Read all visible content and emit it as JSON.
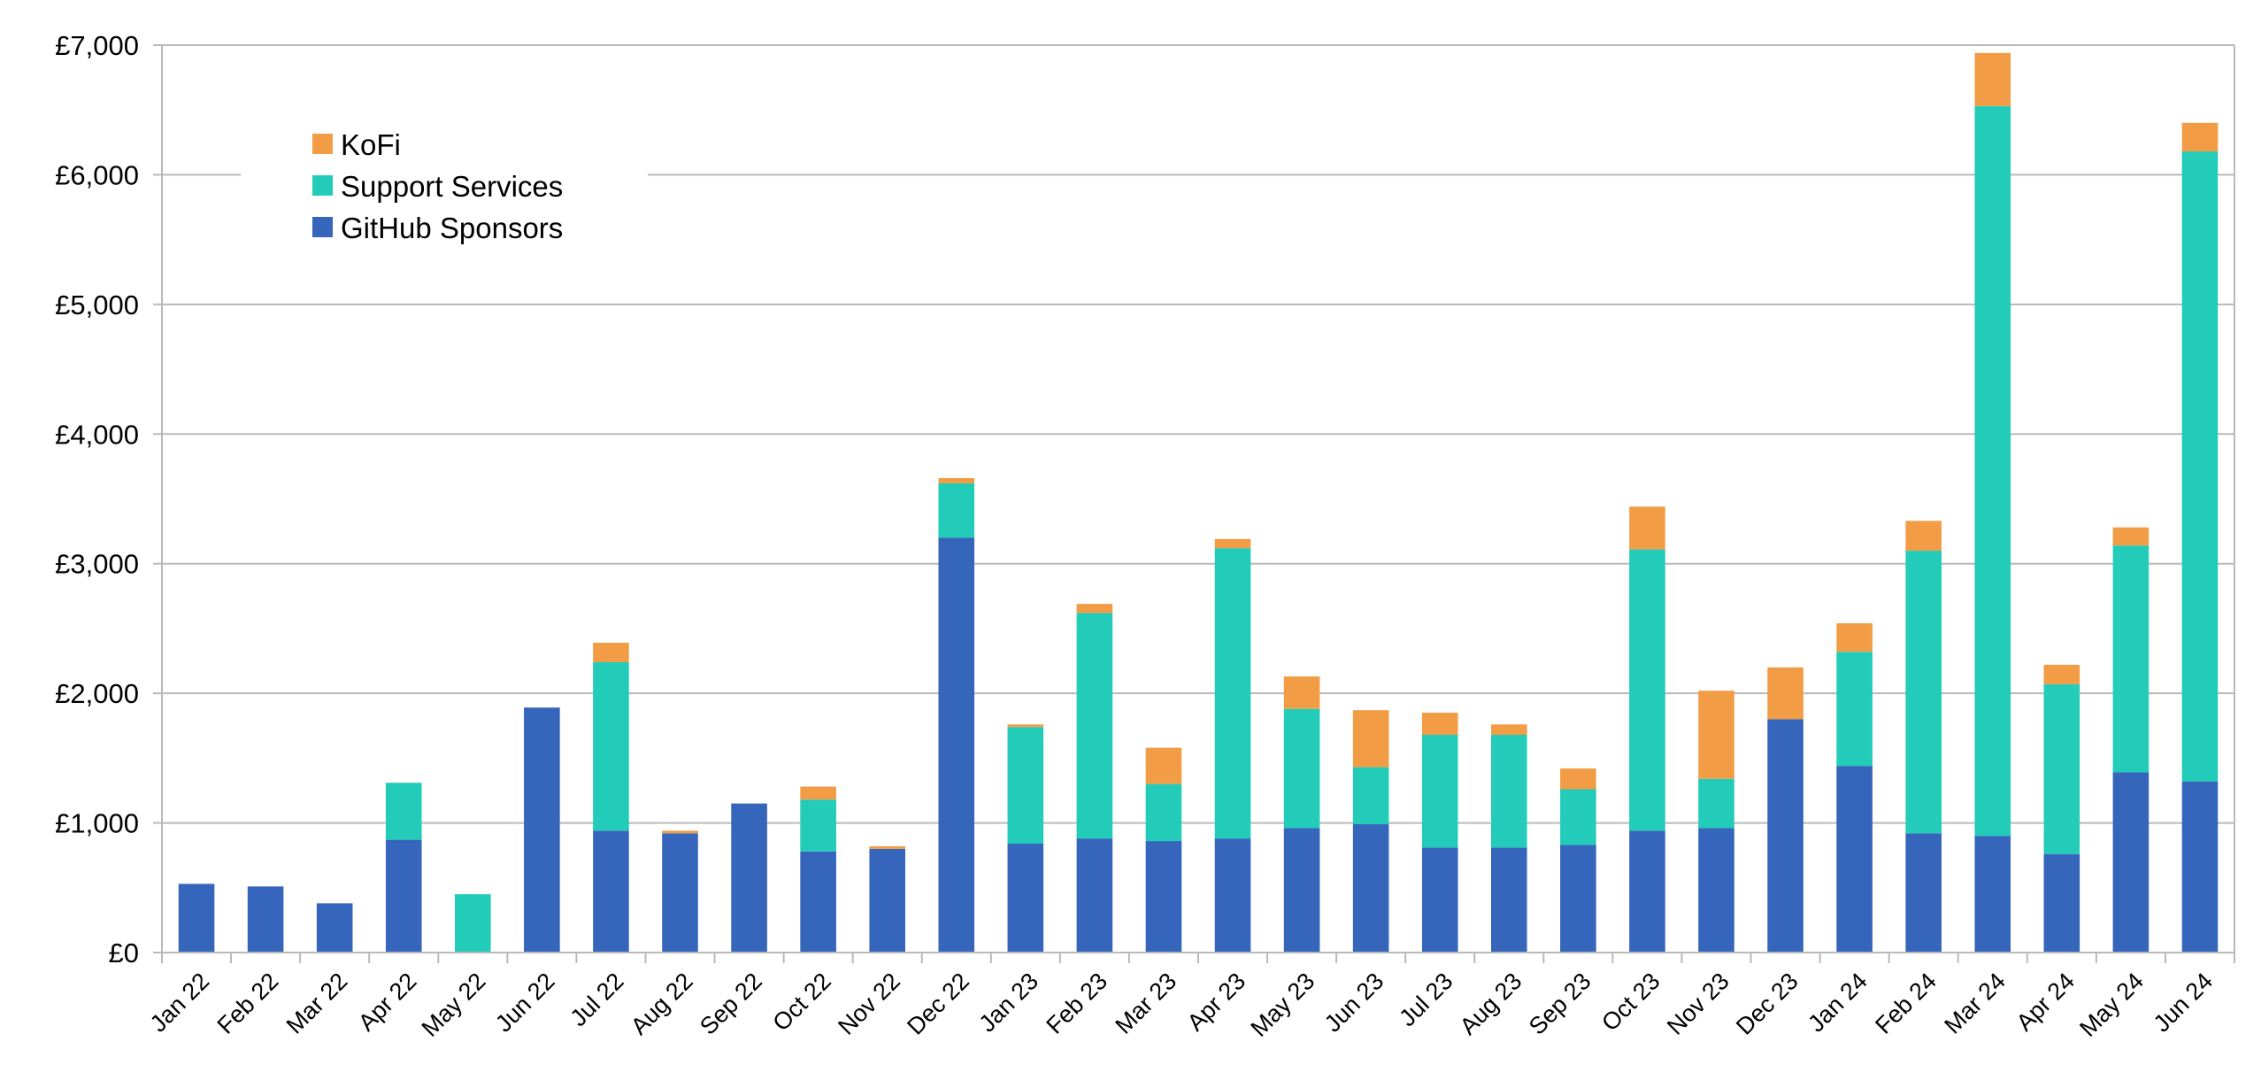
{
  "chart_data": {
    "type": "bar",
    "stacked": true,
    "categories": [
      "Jan 22",
      "Feb 22",
      "Mar 22",
      "Apr 22",
      "May 22",
      "Jun 22",
      "Jul 22",
      "Aug 22",
      "Sep 22",
      "Oct 22",
      "Nov 22",
      "Dec 22",
      "Jan 23",
      "Feb 23",
      "Mar 23",
      "Apr 23",
      "May 23",
      "Jun 23",
      "Jul 23",
      "Aug 23",
      "Sep 23",
      "Oct 23",
      "Nov 23",
      "Dec 23",
      "Jan 24",
      "Feb 24",
      "Mar 24",
      "Apr 24",
      "May 24",
      "Jun 24"
    ],
    "series": [
      {
        "name": "GitHub Sponsors",
        "color": "#3566bb",
        "values": [
          530,
          510,
          380,
          870,
          0,
          1890,
          940,
          920,
          1150,
          780,
          800,
          3200,
          840,
          880,
          860,
          880,
          960,
          990,
          810,
          810,
          830,
          940,
          960,
          1800,
          1440,
          920,
          900,
          760,
          1390,
          1320
        ]
      },
      {
        "name": "Support Services",
        "color": "#23ccb8",
        "values": [
          0,
          0,
          0,
          440,
          450,
          0,
          1300,
          0,
          0,
          400,
          0,
          420,
          900,
          1740,
          440,
          2240,
          920,
          440,
          870,
          870,
          430,
          2170,
          380,
          0,
          880,
          2180,
          5630,
          1310,
          1750,
          4860
        ]
      },
      {
        "name": "KoFi",
        "color": "#f29d46",
        "values": [
          0,
          0,
          0,
          0,
          0,
          0,
          150,
          20,
          0,
          100,
          20,
          40,
          20,
          70,
          280,
          70,
          250,
          440,
          170,
          80,
          160,
          330,
          680,
          400,
          220,
          230,
          410,
          150,
          140,
          220
        ]
      }
    ],
    "ylim": [
      0,
      7000
    ],
    "yticks": [
      "£0",
      "£1,000",
      "£2,000",
      "£3,000",
      "£4,000",
      "£5,000",
      "£6,000",
      "£7,000"
    ],
    "grid": true,
    "legend": {
      "placement": "top-left",
      "order": [
        "KoFi",
        "Support Services",
        "GitHub Sponsors"
      ]
    },
    "title": "",
    "xlabel": "",
    "ylabel": ""
  }
}
